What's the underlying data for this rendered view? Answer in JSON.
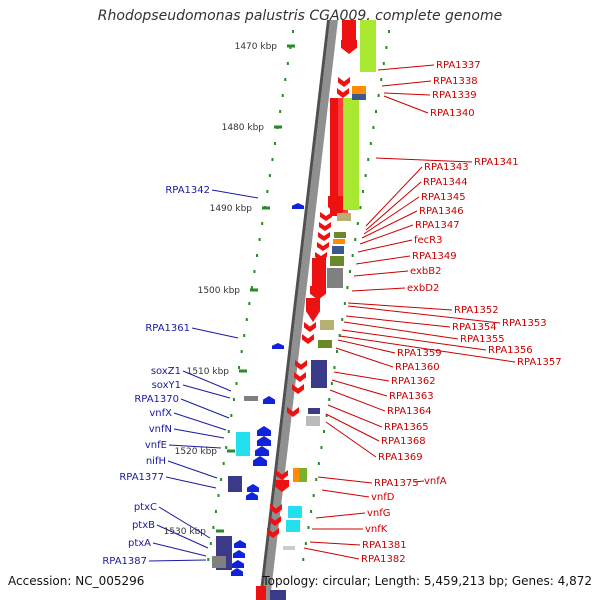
{
  "title": "Rhodopseudomonas palustris CGA009, complete genome",
  "footer": {
    "accession": "Accession: NC_005296",
    "summary": "Topology: circular; Length: 5,459,213 bp; Genes: 4,872"
  },
  "colors": {
    "backbone": "#909090",
    "tick": "#2a8a2a",
    "forward_gene": "#ee1111",
    "reverse_gene": "#1122dd",
    "left_label": "#1a1aa0",
    "right_label": "#cc0000",
    "kbp_label": "#333333",
    "lime": "#a8e830",
    "cyan": "#22e0ee",
    "navy": "#3a3a88",
    "olive": "#b8b070",
    "grey": "#808080",
    "orange": "#ff8c00"
  },
  "kbp_labels": [
    "1470 kbp",
    "1480 kbp",
    "1490 kbp",
    "1500 kbp",
    "1510 kbp",
    "1520 kbp",
    "1530 kbp"
  ],
  "left_genes": [
    "RPA1342",
    "RPA1361",
    "soxZ1",
    "soxY1",
    "RPA1370",
    "vnfX",
    "vnfN",
    "vnfE",
    "nifH",
    "RPA1377",
    "ptxC",
    "ptxB",
    "ptxA",
    "RPA1387"
  ],
  "right_genes": [
    "RPA1337",
    "RPA1338",
    "RPA1339",
    "RPA1340",
    "RPA1341",
    "RPA1343",
    "RPA1344",
    "RPA1345",
    "RPA1346",
    "RPA1347",
    "fecR3",
    "RPA1349",
    "exbB2",
    "exbD2",
    "RPA1352",
    "RPA1353",
    "RPA1354",
    "RPA1355",
    "RPA1356",
    "RPA1357",
    "RPA1359",
    "RPA1360",
    "RPA1362",
    "RPA1363",
    "RPA1364",
    "RPA1365",
    "RPA1368",
    "RPA1369",
    "RPA1375",
    "vnfA",
    "vnfD",
    "vnfG",
    "vnfK",
    "RPA1381",
    "RPA1382"
  ]
}
